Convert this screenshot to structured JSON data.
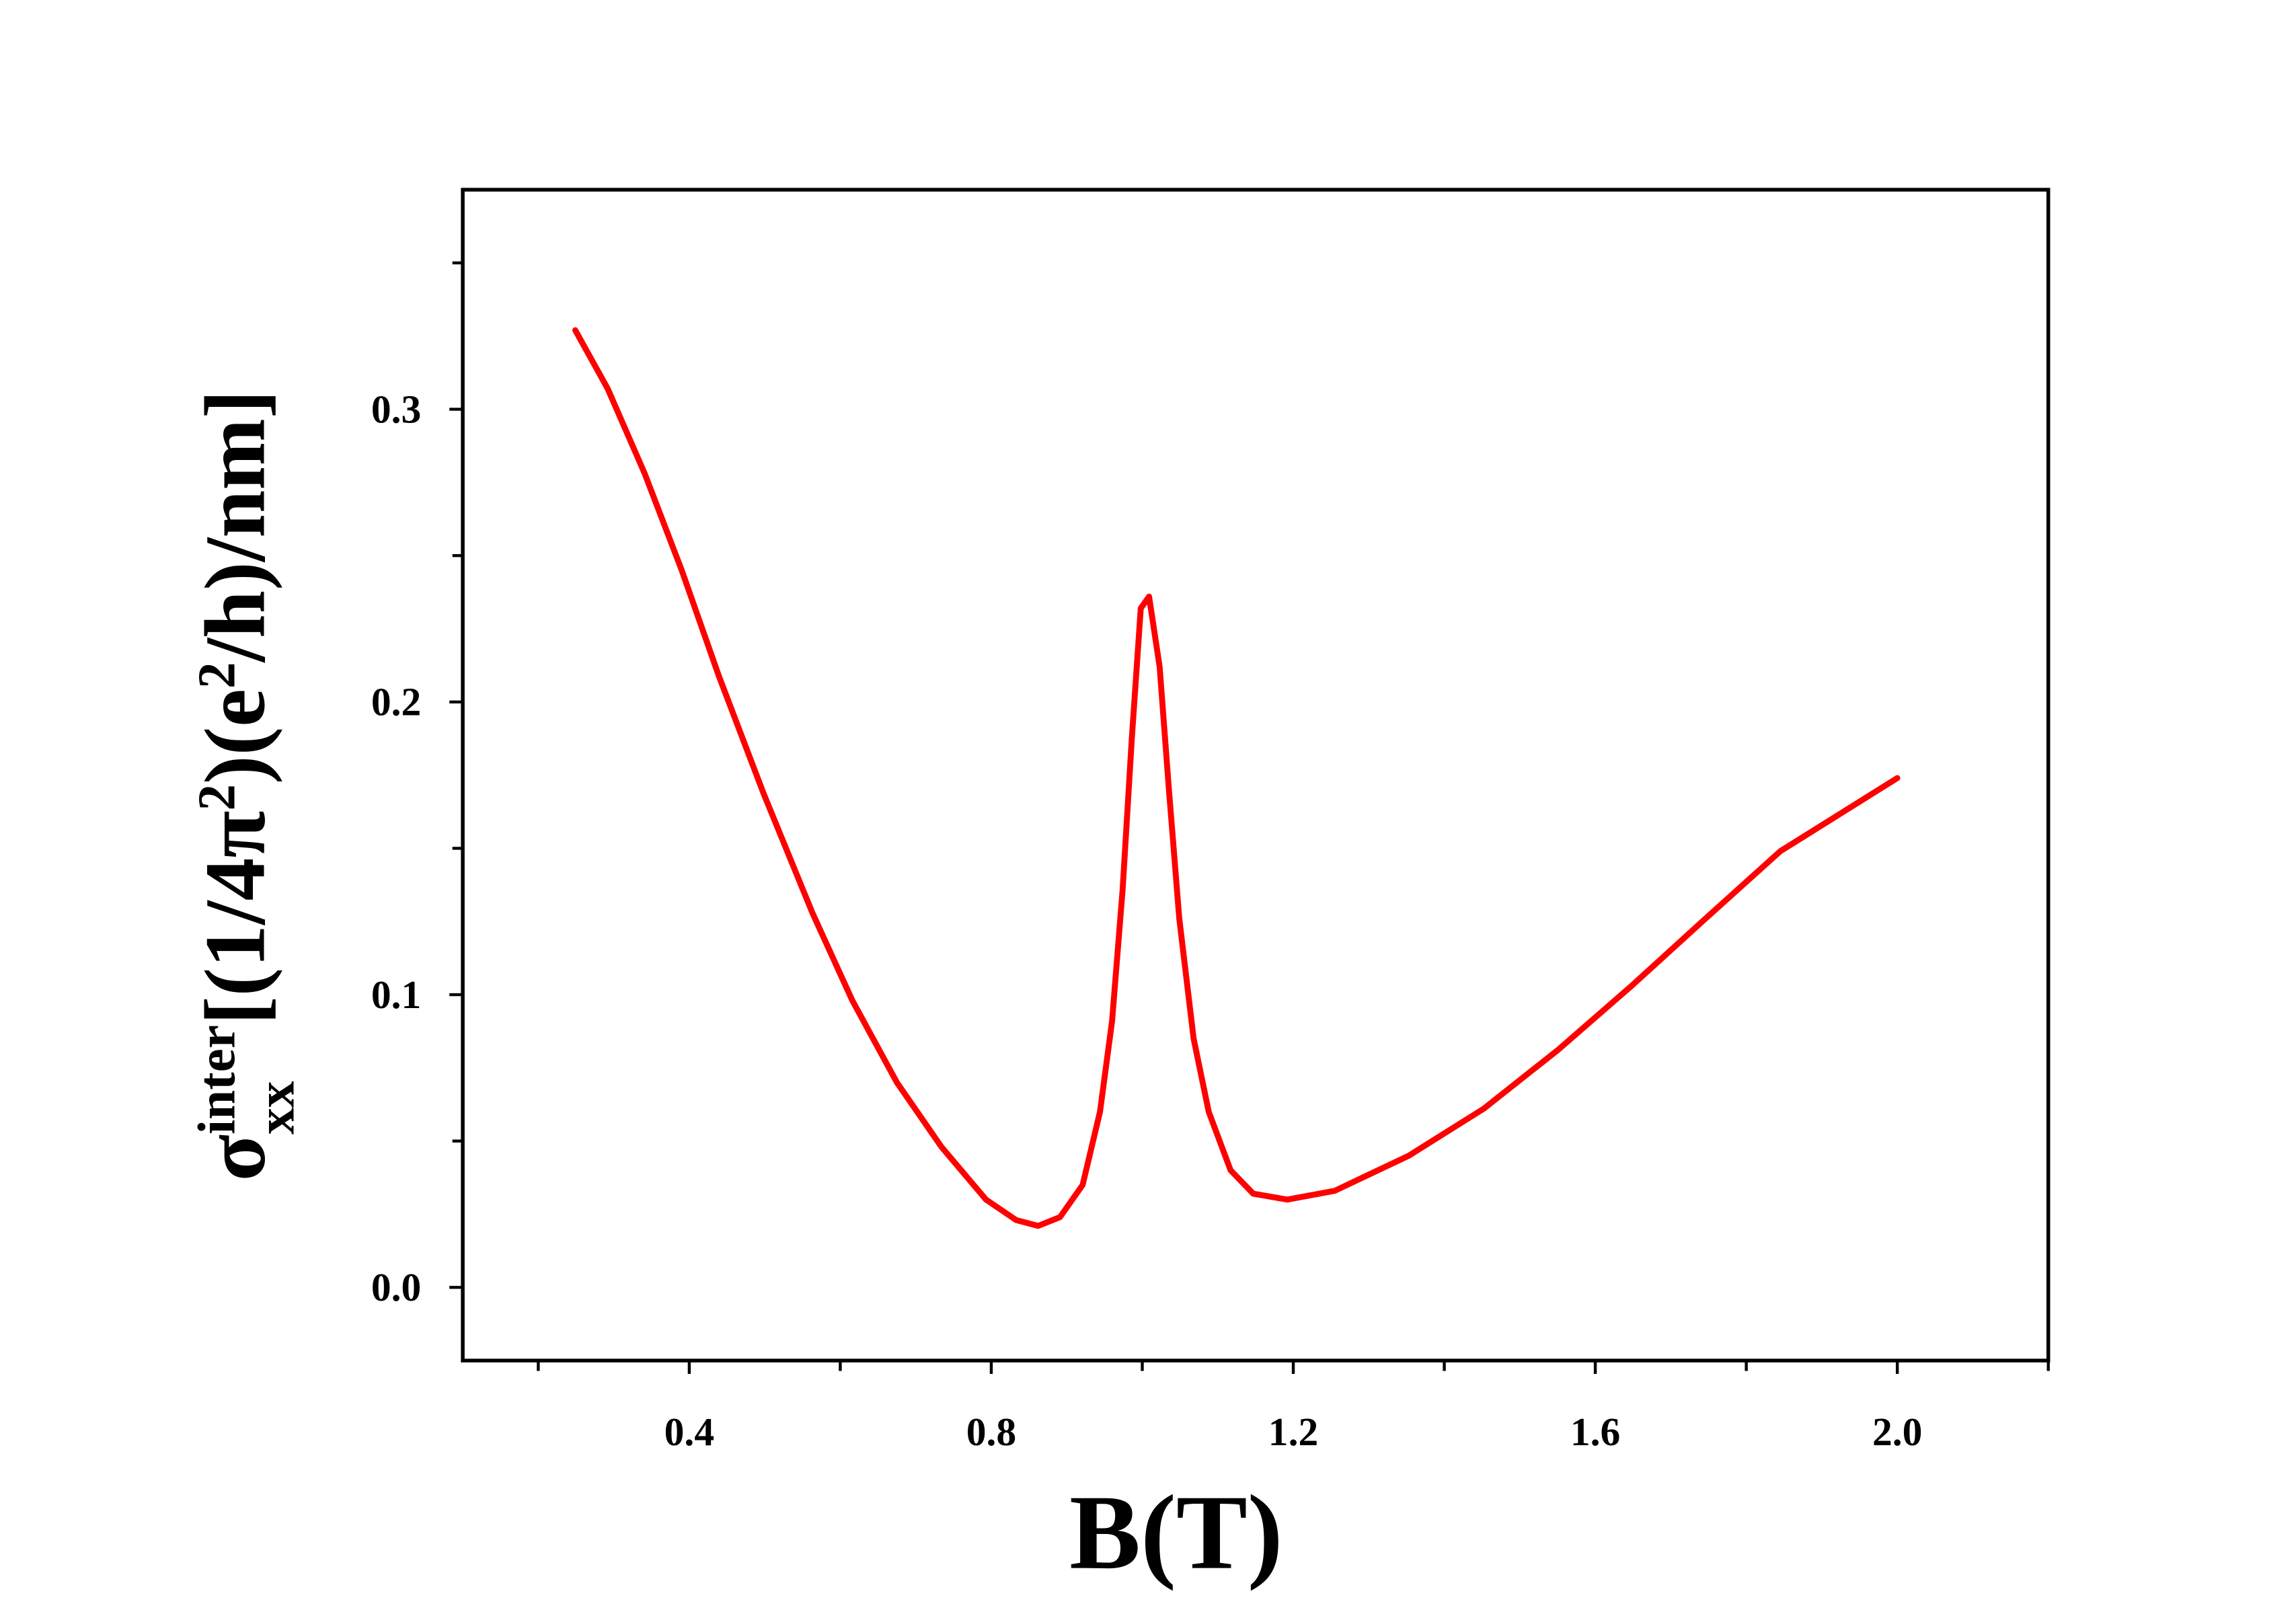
{
  "chart_data": {
    "type": "line",
    "xlabel": "B(T)",
    "ylabel": [
      {
        "text": "σ"
      },
      {
        "text": "inter",
        "shift": "super"
      },
      {
        "text": "xx",
        "shift": "sub"
      },
      {
        "text": "[(1/4π"
      },
      {
        "text": "2",
        "shift": "super"
      },
      {
        "text": ")(e"
      },
      {
        "text": "2",
        "shift": "super"
      },
      {
        "text": "/h)/nm]"
      }
    ],
    "xlim": [
      0.1,
      2.2
    ],
    "ylim": [
      -0.025,
      0.375
    ],
    "xticks": [
      0.4,
      0.8,
      1.2,
      1.6,
      {
        "value": 2,
        "label": "2.0"
      }
    ],
    "xminorticks": [
      0.2,
      0.6,
      1.0,
      1.4,
      1.8,
      2.2
    ],
    "yticks": [
      {
        "value": 0,
        "label": "0.0"
      },
      0.1,
      0.2,
      0.3
    ],
    "yminorticks": [
      0.05,
      0.15,
      0.25,
      0.35
    ],
    "series": [
      {
        "color": "#ff0000",
        "x": [
          0.249,
          0.292,
          0.341,
          0.39,
          0.439,
          0.498,
          0.563,
          0.616,
          0.675,
          0.734,
          0.793,
          0.833,
          0.862,
          0.891,
          0.921,
          0.944,
          0.96,
          0.974,
          0.986,
          0.998,
          1.009,
          1.023,
          1.035,
          1.049,
          1.068,
          1.088,
          1.117,
          1.147,
          1.192,
          1.255,
          1.353,
          1.452,
          1.55,
          1.648,
          1.746,
          1.845,
          2.0
        ],
        "values": [
          0.327,
          0.307,
          0.278,
          0.245,
          0.209,
          0.169,
          0.128,
          0.098,
          0.07,
          0.048,
          0.03,
          0.023,
          0.021,
          0.024,
          0.035,
          0.06,
          0.091,
          0.136,
          0.187,
          0.232,
          0.236,
          0.212,
          0.171,
          0.126,
          0.085,
          0.06,
          0.04,
          0.032,
          0.03,
          0.033,
          0.045,
          0.061,
          0.081,
          0.103,
          0.126,
          0.149,
          0.174
        ]
      }
    ]
  }
}
